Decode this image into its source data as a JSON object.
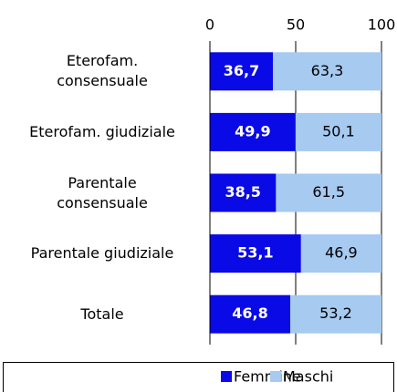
{
  "chart_data": {
    "type": "stacked-bar-horizontal",
    "categories": [
      "Eterofam.\nconsensuale",
      "Eterofam. giudiziale",
      "Parentale\nconsensuale",
      "Parentale giudiziale",
      "Totale"
    ],
    "series": [
      {
        "name": "Femmine",
        "color": "#0a0ae6",
        "values": [
          36.7,
          49.9,
          38.5,
          53.1,
          46.8
        ],
        "value_labels": [
          "36,7",
          "49,9",
          "38,5",
          "53,1",
          "46,8"
        ]
      },
      {
        "name": "Maschi",
        "color": "#a6caf0",
        "values": [
          63.3,
          50.1,
          61.5,
          46.9,
          53.2
        ],
        "value_labels": [
          "63,3",
          "50,1",
          "61,5",
          "46,9",
          "53,2"
        ]
      }
    ],
    "xlim": [
      0,
      100
    ],
    "xticks": [
      0,
      50,
      100
    ],
    "grid": true,
    "legend": "bottom"
  }
}
